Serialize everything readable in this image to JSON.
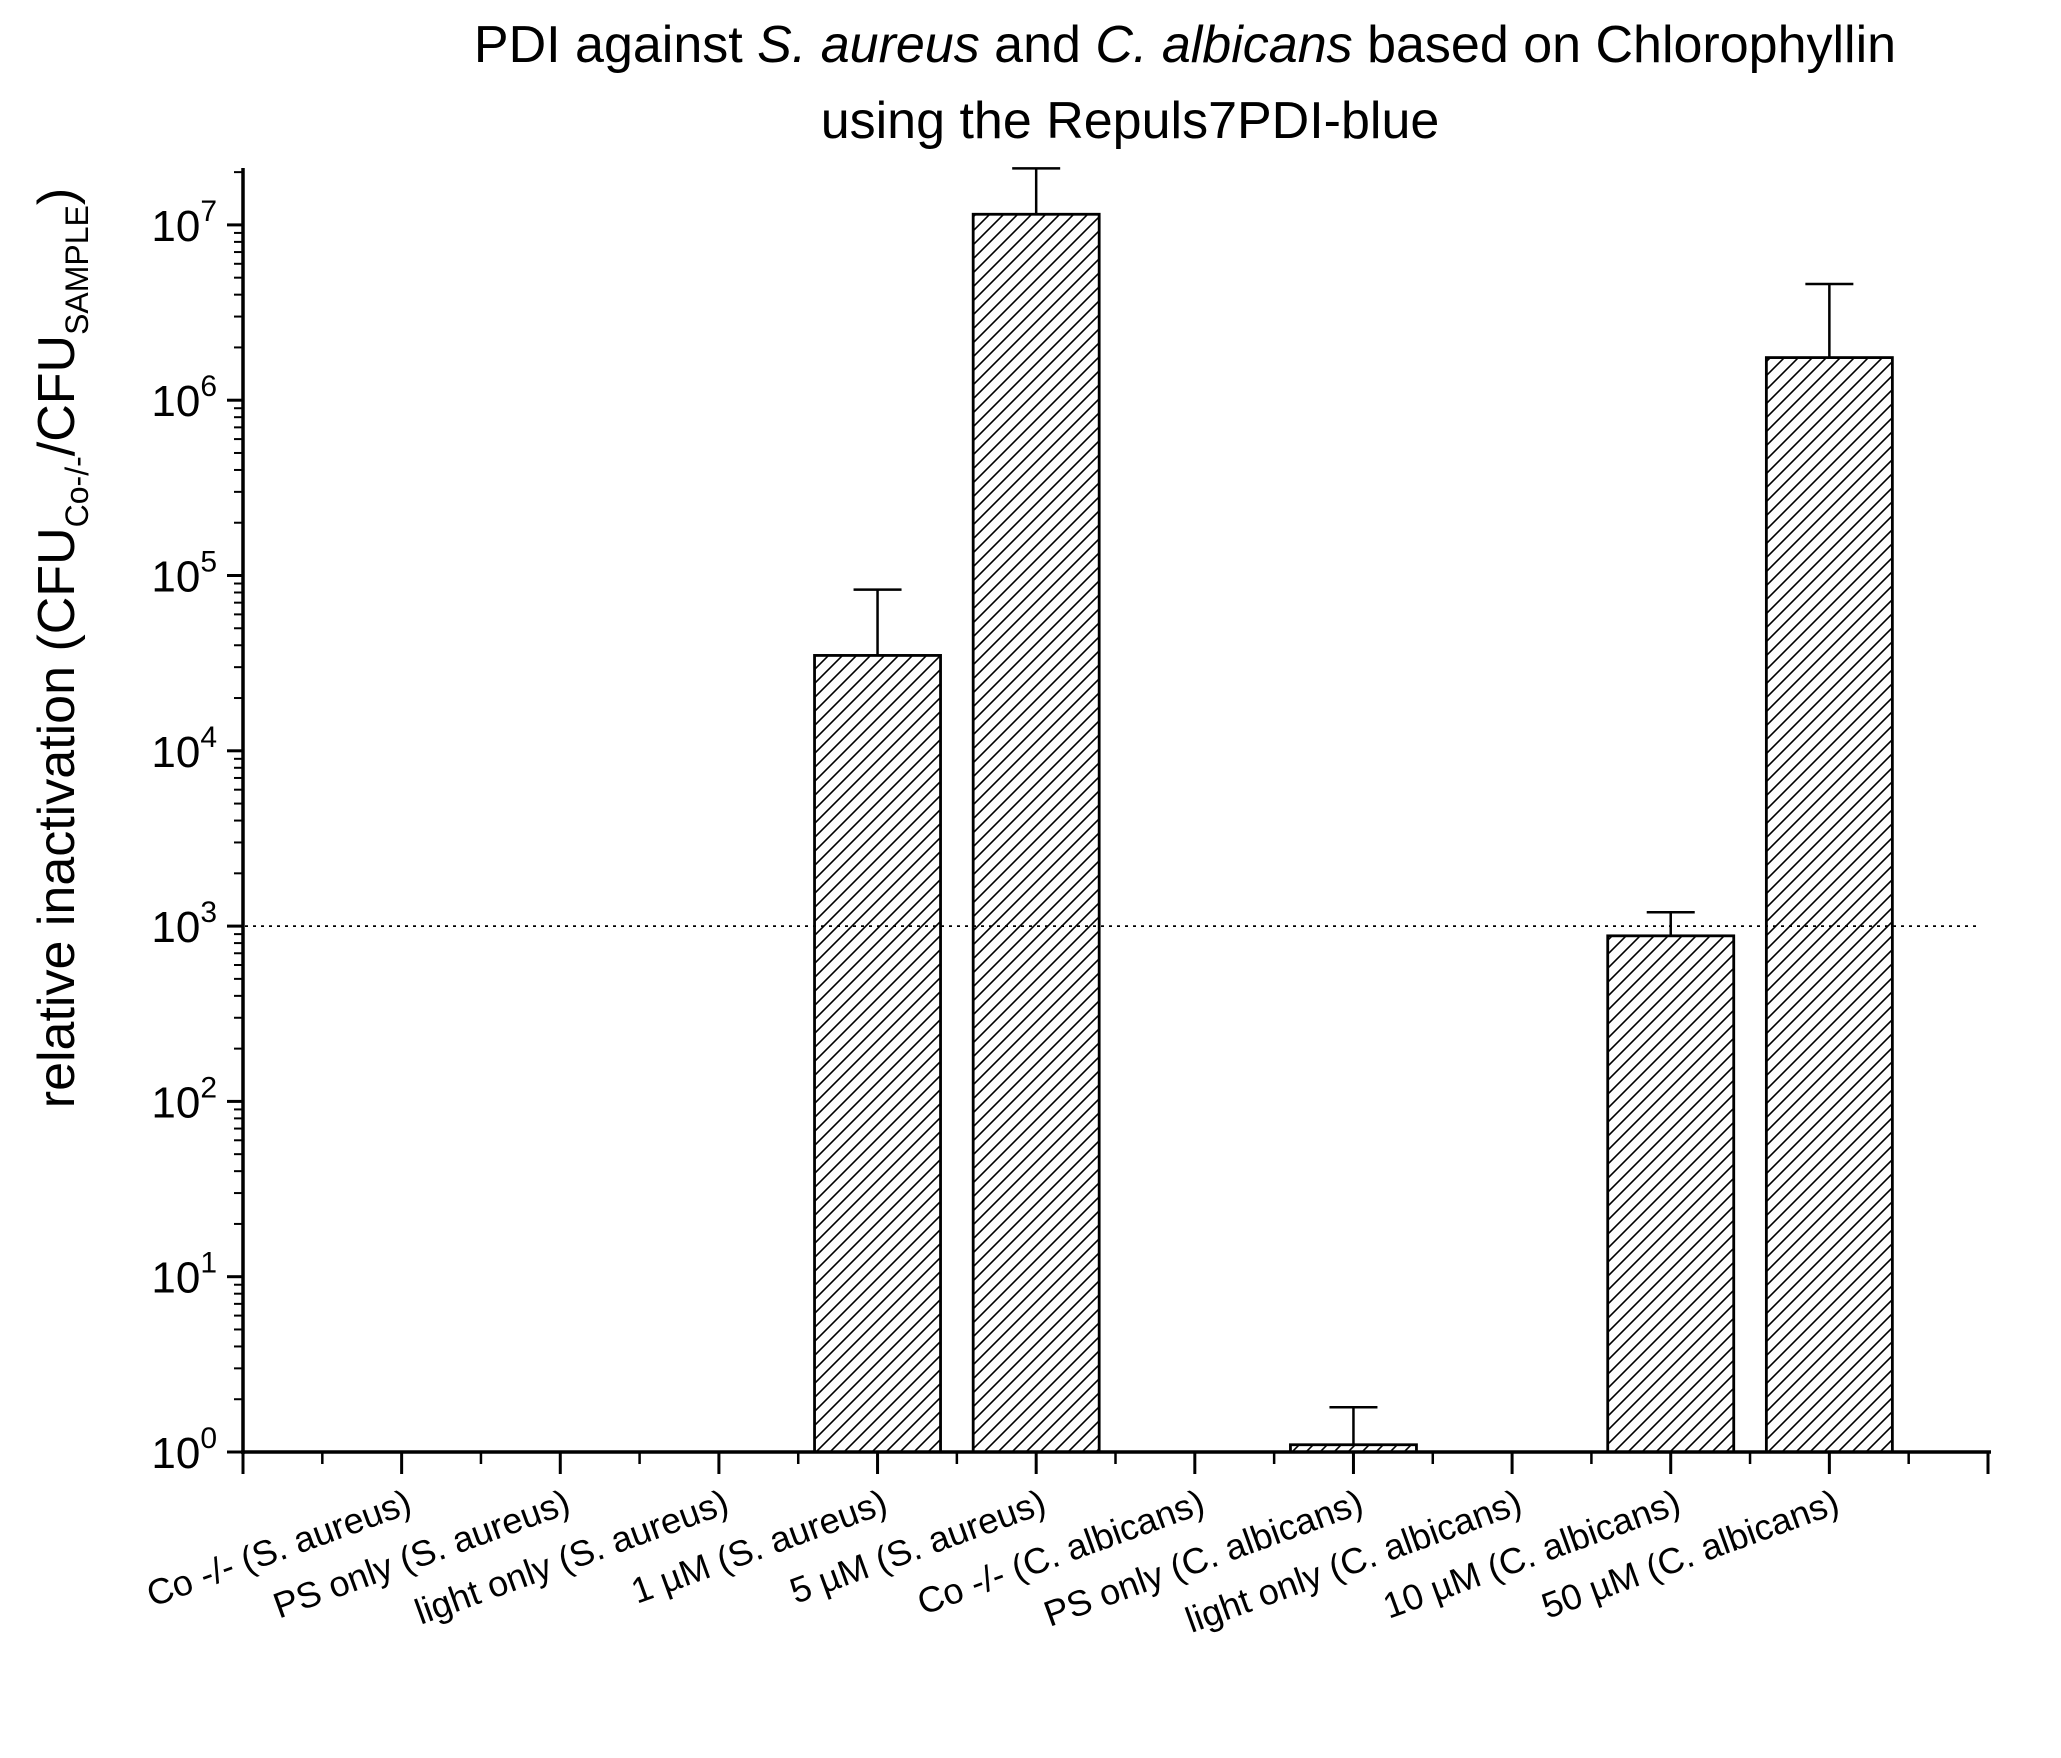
{
  "chart_data": {
    "type": "bar",
    "title": {
      "line1": {
        "pre": "PDI against ",
        "italic1": "S. aureus",
        "mid": " and ",
        "italic2": "C. albicans",
        "post": " based on Chlorophyllin"
      },
      "line2": "using the Repuls7PDI-blue"
    },
    "ylabel": {
      "main": "relative inactivation (CFU",
      "sub1": "Co-/-",
      "mid": "/CFU",
      "sub2": "SAMPLE",
      "end": ")"
    },
    "xlabel": "",
    "yscale": "log",
    "ylim": [
      1,
      25000000
    ],
    "ytick_labels": [
      {
        "base": "10",
        "exp": "0",
        "value": 1
      },
      {
        "base": "10",
        "exp": "1",
        "value": 10
      },
      {
        "base": "10",
        "exp": "2",
        "value": 100
      },
      {
        "base": "10",
        "exp": "3",
        "value": 1000
      },
      {
        "base": "10",
        "exp": "4",
        "value": 10000
      },
      {
        "base": "10",
        "exp": "5",
        "value": 100000
      },
      {
        "base": "10",
        "exp": "6",
        "value": 1000000
      },
      {
        "base": "10",
        "exp": "7",
        "value": 10000000
      }
    ],
    "categories": [
      "Co -/- (S. aureus)",
      "PS only (S. aureus)",
      "light only (S. aureus)",
      "1 µM (S. aureus)",
      "5 µM (S. aureus)",
      "Co -/- (C. albicans)",
      "PS only (C. albicans)",
      "light only (C. albicans)",
      "10 µM (C. albicans)",
      "50 µM (C. albicans)"
    ],
    "values": [
      1,
      1,
      1,
      35000,
      11500000,
      1,
      1.1,
      1,
      880,
      1750000
    ],
    "error_upper": [
      1,
      1,
      1,
      83000,
      21000000,
      1,
      1.8,
      1,
      1200,
      4600000
    ],
    "reference_line": 1000,
    "bar_fill": "diagonal hatch",
    "grid": false,
    "legend": "none",
    "colors": {
      "bar_stroke": "#000000",
      "hatch": "#000000",
      "background": "#ffffff"
    }
  }
}
